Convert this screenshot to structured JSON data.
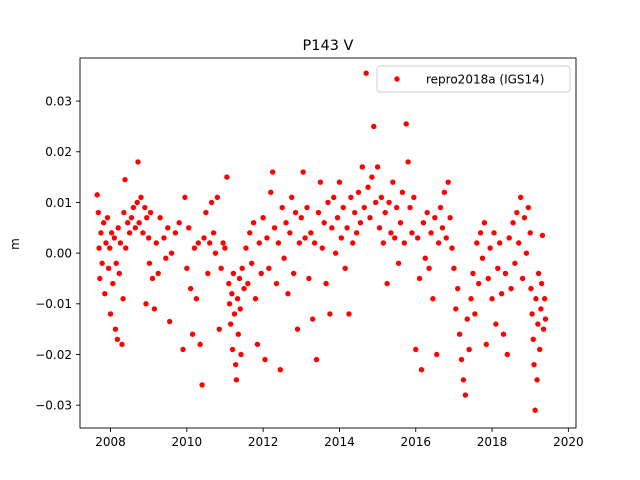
{
  "chart_data": {
    "type": "scatter",
    "title": "P143 V",
    "xlabel": "",
    "ylabel": "m",
    "xlim": [
      2007.2,
      2020.2
    ],
    "ylim": [
      -0.0345,
      0.0385
    ],
    "x_ticks": [
      2008,
      2010,
      2012,
      2014,
      2016,
      2018,
      2020
    ],
    "x_tick_labels": [
      "2008",
      "2010",
      "2012",
      "2014",
      "2016",
      "2018",
      "2020"
    ],
    "y_ticks": [
      -0.03,
      -0.02,
      -0.01,
      0.0,
      0.01,
      0.02,
      0.03
    ],
    "y_tick_labels": [
      "−0.03",
      "−0.02",
      "−0.01",
      "0.00",
      "0.01",
      "0.02",
      "0.03"
    ],
    "grid": false,
    "legend": {
      "position": "top-right",
      "entries": [
        "repro2018a (IGS14)"
      ]
    },
    "series": [
      {
        "name": "repro2018a (IGS14)",
        "color": "#ff0000",
        "marker": "circle",
        "points": [
          [
            2007.65,
            0.0115
          ],
          [
            2007.68,
            0.008
          ],
          [
            2007.7,
            0.001
          ],
          [
            2007.72,
            -0.005
          ],
          [
            2007.75,
            0.004
          ],
          [
            2007.78,
            -0.002
          ],
          [
            2007.82,
            0.006
          ],
          [
            2007.85,
            -0.008
          ],
          [
            2007.88,
            0.002
          ],
          [
            2007.92,
            0.007
          ],
          [
            2007.95,
            -0.003
          ],
          [
            2007.98,
            0.001
          ],
          [
            2008.0,
            -0.012
          ],
          [
            2008.03,
            0.004
          ],
          [
            2008.06,
            -0.006
          ],
          [
            2008.1,
            0.003
          ],
          [
            2008.13,
            -0.015
          ],
          [
            2008.15,
            -0.002
          ],
          [
            2008.18,
            -0.017
          ],
          [
            2008.2,
            0.005
          ],
          [
            2008.23,
            -0.004
          ],
          [
            2008.26,
            0.002
          ],
          [
            2008.3,
            -0.018
          ],
          [
            2008.33,
            -0.009
          ],
          [
            2008.35,
            0.008
          ],
          [
            2008.38,
            0.0145
          ],
          [
            2008.4,
            0.001
          ],
          [
            2008.45,
            0.006
          ],
          [
            2008.5,
            0.004
          ],
          [
            2008.55,
            0.007
          ],
          [
            2008.6,
            0.009
          ],
          [
            2008.65,
            0.005
          ],
          [
            2008.7,
            0.01
          ],
          [
            2008.72,
            0.018
          ],
          [
            2008.75,
            0.006
          ],
          [
            2008.8,
            0.011
          ],
          [
            2008.85,
            0.004
          ],
          [
            2008.9,
            0.009
          ],
          [
            2008.93,
            -0.01
          ],
          [
            2008.95,
            0.007
          ],
          [
            2009.0,
            0.003
          ],
          [
            2009.02,
            -0.002
          ],
          [
            2009.05,
            0.008
          ],
          [
            2009.1,
            -0.005
          ],
          [
            2009.15,
            -0.011
          ],
          [
            2009.2,
            0.002
          ],
          [
            2009.25,
            -0.004
          ],
          [
            2009.3,
            0.007
          ],
          [
            2009.4,
            0.003
          ],
          [
            2009.45,
            -0.001
          ],
          [
            2009.5,
            0.005
          ],
          [
            2009.55,
            -0.0135
          ],
          [
            2009.6,
            0.0
          ],
          [
            2009.7,
            0.004
          ],
          [
            2009.8,
            0.006
          ],
          [
            2009.9,
            -0.019
          ],
          [
            2009.95,
            0.011
          ],
          [
            2010.0,
            -0.003
          ],
          [
            2010.05,
            0.005
          ],
          [
            2010.1,
            -0.007
          ],
          [
            2010.15,
            -0.016
          ],
          [
            2010.2,
            0.001
          ],
          [
            2010.25,
            -0.009
          ],
          [
            2010.3,
            0.002
          ],
          [
            2010.35,
            -0.018
          ],
          [
            2010.4,
            -0.026
          ],
          [
            2010.45,
            0.003
          ],
          [
            2010.5,
            0.008
          ],
          [
            2010.55,
            -0.004
          ],
          [
            2010.6,
            0.002
          ],
          [
            2010.65,
            0.01
          ],
          [
            2010.7,
            0.004
          ],
          [
            2010.75,
            0.0
          ],
          [
            2010.8,
            0.011
          ],
          [
            2010.85,
            -0.015
          ],
          [
            2010.9,
            -0.003
          ],
          [
            2010.95,
            0.002
          ],
          [
            2011.0,
            0.001
          ],
          [
            2011.05,
            0.015
          ],
          [
            2011.1,
            -0.006
          ],
          [
            2011.12,
            -0.01
          ],
          [
            2011.15,
            -0.014
          ],
          [
            2011.18,
            -0.008
          ],
          [
            2011.2,
            -0.019
          ],
          [
            2011.22,
            -0.004
          ],
          [
            2011.25,
            -0.012
          ],
          [
            2011.28,
            -0.022
          ],
          [
            2011.3,
            -0.025
          ],
          [
            2011.33,
            -0.009
          ],
          [
            2011.35,
            -0.016
          ],
          [
            2011.38,
            -0.005
          ],
          [
            2011.4,
            -0.011
          ],
          [
            2011.42,
            -0.02
          ],
          [
            2011.45,
            -0.003
          ],
          [
            2011.5,
            -0.007
          ],
          [
            2011.55,
            0.001
          ],
          [
            2011.6,
            -0.006
          ],
          [
            2011.65,
            0.004
          ],
          [
            2011.7,
            -0.002
          ],
          [
            2011.75,
            0.006
          ],
          [
            2011.8,
            -0.009
          ],
          [
            2011.85,
            -0.018
          ],
          [
            2011.9,
            0.002
          ],
          [
            2011.95,
            -0.004
          ],
          [
            2012.0,
            0.007
          ],
          [
            2012.05,
            -0.021
          ],
          [
            2012.1,
            0.003
          ],
          [
            2012.15,
            -0.003
          ],
          [
            2012.2,
            0.012
          ],
          [
            2012.25,
            0.016
          ],
          [
            2012.3,
            0.005
          ],
          [
            2012.35,
            -0.006
          ],
          [
            2012.4,
            0.002
          ],
          [
            2012.45,
            -0.023
          ],
          [
            2012.5,
            0.009
          ],
          [
            2012.55,
            -0.001
          ],
          [
            2012.6,
            0.006
          ],
          [
            2012.65,
            -0.008
          ],
          [
            2012.7,
            0.004
          ],
          [
            2012.75,
            0.011
          ],
          [
            2012.8,
            -0.004
          ],
          [
            2012.85,
            0.008
          ],
          [
            2012.9,
            -0.015
          ],
          [
            2012.95,
            0.002
          ],
          [
            2013.0,
            0.007
          ],
          [
            2013.05,
            0.016
          ],
          [
            2013.1,
            0.003
          ],
          [
            2013.15,
            0.009
          ],
          [
            2013.2,
            -0.005
          ],
          [
            2013.25,
            0.004
          ],
          [
            2013.3,
            -0.013
          ],
          [
            2013.35,
            0.002
          ],
          [
            2013.4,
            -0.021
          ],
          [
            2013.45,
            0.008
          ],
          [
            2013.5,
            0.014
          ],
          [
            2013.55,
            0.001
          ],
          [
            2013.6,
            0.006
          ],
          [
            2013.65,
            -0.006
          ],
          [
            2013.7,
            0.01
          ],
          [
            2013.75,
            -0.012
          ],
          [
            2013.8,
            0.005
          ],
          [
            2013.85,
            0.011
          ],
          [
            2013.9,
            0.0
          ],
          [
            2013.95,
            0.007
          ],
          [
            2014.0,
            0.014
          ],
          [
            2014.05,
            0.003
          ],
          [
            2014.1,
            0.009
          ],
          [
            2014.15,
            -0.003
          ],
          [
            2014.2,
            0.005
          ],
          [
            2014.25,
            -0.012
          ],
          [
            2014.3,
            0.011
          ],
          [
            2014.35,
            0.002
          ],
          [
            2014.4,
            0.008
          ],
          [
            2014.45,
            0.004
          ],
          [
            2014.5,
            0.012
          ],
          [
            2014.55,
            0.006
          ],
          [
            2014.6,
            0.017
          ],
          [
            2014.65,
            0.009
          ],
          [
            2014.7,
            0.0355
          ],
          [
            2014.75,
            0.013
          ],
          [
            2014.8,
            0.007
          ],
          [
            2014.85,
            0.015
          ],
          [
            2014.9,
            0.025
          ],
          [
            2014.95,
            0.01
          ],
          [
            2015.0,
            0.017
          ],
          [
            2015.05,
            0.005
          ],
          [
            2015.1,
            0.011
          ],
          [
            2015.15,
            0.002
          ],
          [
            2015.2,
            0.008
          ],
          [
            2015.25,
            -0.006
          ],
          [
            2015.3,
            0.01
          ],
          [
            2015.35,
            0.004
          ],
          [
            2015.4,
            0.014
          ],
          [
            2015.45,
            0.003
          ],
          [
            2015.5,
            0.009
          ],
          [
            2015.55,
            -0.002
          ],
          [
            2015.6,
            0.006
          ],
          [
            2015.65,
            0.012
          ],
          [
            2015.7,
            0.002
          ],
          [
            2015.75,
            0.0255
          ],
          [
            2015.8,
            0.018
          ],
          [
            2015.85,
            0.009
          ],
          [
            2015.9,
            0.004
          ],
          [
            2015.95,
            0.011
          ],
          [
            2016.0,
            -0.019
          ],
          [
            2016.05,
            0.003
          ],
          [
            2016.1,
            -0.005
          ],
          [
            2016.15,
            -0.023
          ],
          [
            2016.2,
            0.006
          ],
          [
            2016.25,
            -0.001
          ],
          [
            2016.3,
            0.008
          ],
          [
            2016.35,
            -0.003
          ],
          [
            2016.4,
            0.004
          ],
          [
            2016.45,
            -0.009
          ],
          [
            2016.5,
            0.007
          ],
          [
            2016.55,
            -0.02
          ],
          [
            2016.6,
            0.002
          ],
          [
            2016.65,
            0.009
          ],
          [
            2016.7,
            0.005
          ],
          [
            2016.75,
            0.012
          ],
          [
            2016.8,
            0.003
          ],
          [
            2016.85,
            0.014
          ],
          [
            2016.9,
            0.007
          ],
          [
            2016.95,
            0.001
          ],
          [
            2017.0,
            -0.003
          ],
          [
            2017.05,
            -0.011
          ],
          [
            2017.1,
            -0.007
          ],
          [
            2017.15,
            -0.016
          ],
          [
            2017.2,
            -0.021
          ],
          [
            2017.25,
            -0.025
          ],
          [
            2017.3,
            -0.028
          ],
          [
            2017.35,
            -0.013
          ],
          [
            2017.4,
            -0.019
          ],
          [
            2017.45,
            -0.009
          ],
          [
            2017.5,
            -0.004
          ],
          [
            2017.55,
            -0.012
          ],
          [
            2017.6,
            0.002
          ],
          [
            2017.65,
            -0.006
          ],
          [
            2017.7,
            0.004
          ],
          [
            2017.75,
            -0.001
          ],
          [
            2017.8,
            0.006
          ],
          [
            2017.85,
            -0.018
          ],
          [
            2017.9,
            -0.005
          ],
          [
            2017.95,
            0.001
          ],
          [
            2018.0,
            -0.009
          ],
          [
            2018.05,
            0.004
          ],
          [
            2018.1,
            -0.014
          ],
          [
            2018.15,
            -0.003
          ],
          [
            2018.2,
            0.002
          ],
          [
            2018.25,
            -0.008
          ],
          [
            2018.3,
            -0.016
          ],
          [
            2018.35,
            -0.004
          ],
          [
            2018.4,
            -0.02
          ],
          [
            2018.45,
            0.003
          ],
          [
            2018.5,
            -0.007
          ],
          [
            2018.55,
            0.006
          ],
          [
            2018.6,
            -0.002
          ],
          [
            2018.65,
            0.008
          ],
          [
            2018.7,
            0.002
          ],
          [
            2018.75,
            0.011
          ],
          [
            2018.8,
            -0.005
          ],
          [
            2018.85,
            0.007
          ],
          [
            2018.9,
            0.0
          ],
          [
            2018.95,
            0.009
          ],
          [
            2019.0,
            0.004
          ],
          [
            2019.02,
            -0.007
          ],
          [
            2019.05,
            -0.012
          ],
          [
            2019.08,
            -0.017
          ],
          [
            2019.1,
            -0.022
          ],
          [
            2019.13,
            -0.031
          ],
          [
            2019.15,
            -0.009
          ],
          [
            2019.18,
            -0.025
          ],
          [
            2019.2,
            -0.014
          ],
          [
            2019.22,
            -0.004
          ],
          [
            2019.25,
            -0.019
          ],
          [
            2019.28,
            -0.011
          ],
          [
            2019.3,
            -0.006
          ],
          [
            2019.32,
            0.0035
          ],
          [
            2019.35,
            -0.015
          ],
          [
            2019.38,
            -0.009
          ],
          [
            2019.4,
            -0.013
          ]
        ]
      }
    ]
  }
}
